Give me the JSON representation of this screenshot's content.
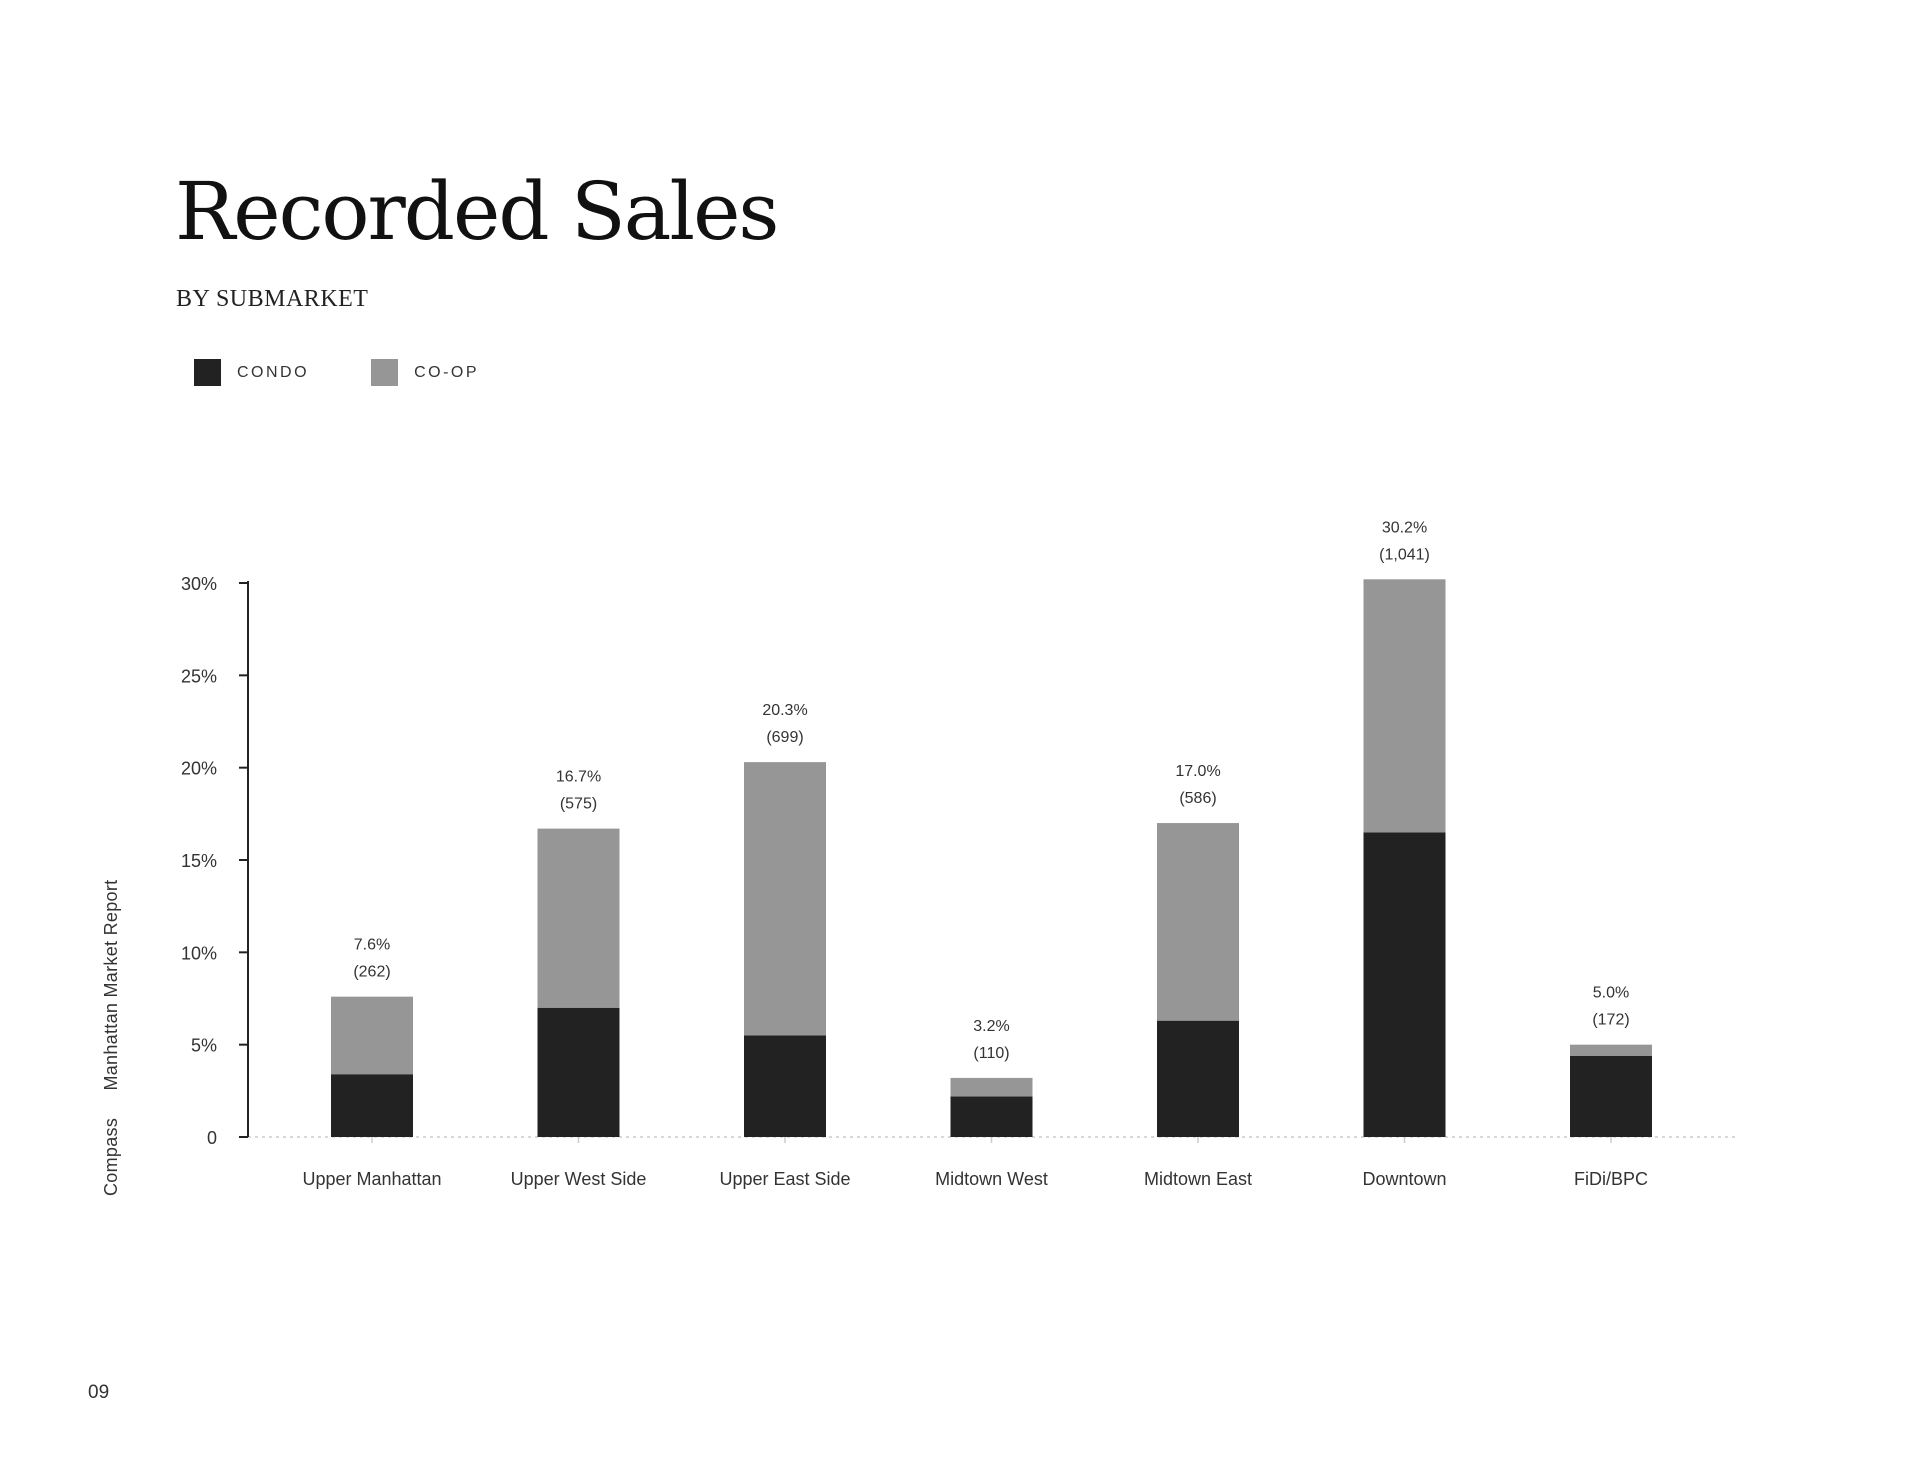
{
  "title": "Recorded Sales",
  "subtitle": "BY SUBMARKET",
  "sidebar": {
    "brand": "Compass",
    "report": "Manhattan Market Report"
  },
  "page_number": "09",
  "colors": {
    "condo": "#222222",
    "coop": "#969696",
    "axis": "#222222",
    "baseline": "#cccccc"
  },
  "chart_data": {
    "type": "bar",
    "stacked": true,
    "title": "Recorded Sales",
    "subtitle": "BY SUBMARKET",
    "categories": [
      "Upper Manhattan",
      "Upper West Side",
      "Upper East Side",
      "Midtown West",
      "Midtown East",
      "Downtown",
      "FiDi/BPC"
    ],
    "series": [
      {
        "name": "CONDO",
        "color": "#222222",
        "values": [
          3.4,
          7.0,
          5.5,
          2.2,
          6.3,
          16.5,
          4.4
        ]
      },
      {
        "name": "CO-OP",
        "color": "#969696",
        "values": [
          4.2,
          9.7,
          14.8,
          1.0,
          10.7,
          13.7,
          0.6
        ]
      }
    ],
    "total_labels": [
      "7.6%",
      "16.7%",
      "20.3%",
      "3.2%",
      "17.0%",
      "30.2%",
      "5.0%"
    ],
    "count_labels": [
      "(262)",
      "(575)",
      "(699)",
      "(110)",
      "(586)",
      "(1,041)",
      "(172)"
    ],
    "totals": [
      7.6,
      16.7,
      20.3,
      3.2,
      17.0,
      30.2,
      5.0
    ],
    "ylim": [
      0,
      30
    ],
    "yticks": [
      0,
      5,
      10,
      15,
      20,
      25,
      30
    ],
    "ytick_labels": [
      "0",
      "5%",
      "10%",
      "15%",
      "20%",
      "25%",
      "30%"
    ],
    "legend_position": "top-left",
    "grid": false,
    "xlabel": "",
    "ylabel": ""
  }
}
